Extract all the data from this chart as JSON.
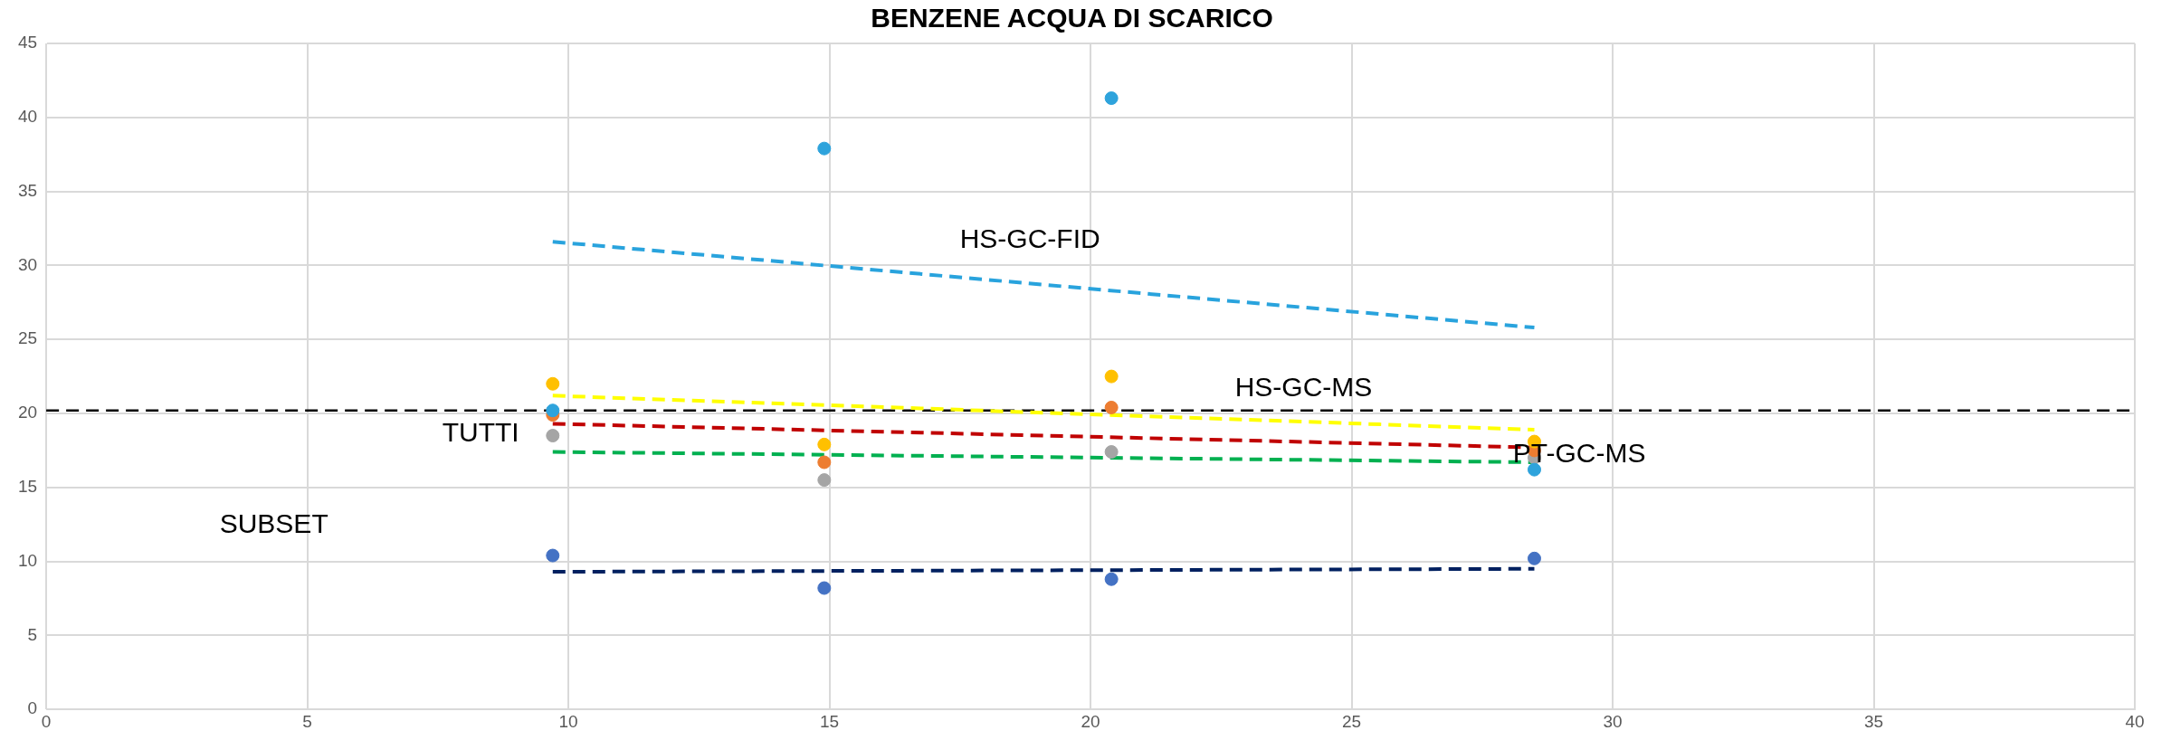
{
  "chart_data": {
    "type": "scatter",
    "title": "BENZENE ACQUA DI SCARICO",
    "xlim": [
      0,
      40
    ],
    "xticks": [
      0,
      5,
      10,
      15,
      20,
      25,
      30,
      35,
      40
    ],
    "ylim": [
      0,
      45
    ],
    "yticks": [
      0,
      5,
      10,
      15,
      20,
      25,
      30,
      35,
      40,
      45
    ],
    "grid": true,
    "legend": false,
    "marker": "circle",
    "series": [
      {
        "type": "scatter",
        "color": "#2ea3dc",
        "x": [
          9.7,
          14.9,
          20.4,
          28.5
        ],
        "values": [
          20.2,
          37.9,
          41.3,
          16.2
        ]
      },
      {
        "type": "scatter",
        "color": "#ffc000",
        "x": [
          9.7,
          14.9,
          20.4,
          28.5
        ],
        "values": [
          22,
          17.9,
          22.5,
          18.1
        ]
      },
      {
        "type": "scatter",
        "color": "#ed7d31",
        "x": [
          9.7,
          14.9,
          20.4,
          28.5
        ],
        "values": [
          19.9,
          16.7,
          20.4,
          17.5
        ]
      },
      {
        "type": "scatter",
        "color": "#a5a5a5",
        "x": [
          9.7,
          14.9,
          20.4,
          28.5
        ],
        "values": [
          18.5,
          15.5,
          17.4,
          17.0
        ]
      },
      {
        "type": "scatter",
        "color": "#4472c4",
        "x": [
          9.7,
          14.9,
          20.4,
          28.5
        ],
        "values": [
          10.4,
          8.2,
          8.8,
          10.2
        ]
      },
      {
        "type": "line",
        "color": "#29a3dd",
        "line_style": "dashed",
        "marker": "none",
        "x": [
          9.7,
          28.5
        ],
        "values": [
          31.6,
          25.8
        ]
      },
      {
        "type": "line",
        "color": "#ffff00",
        "line_style": "dashed",
        "marker": "none",
        "x": [
          9.7,
          28.5
        ],
        "values": [
          21.2,
          18.9
        ]
      },
      {
        "type": "line",
        "color": "#c00000",
        "line_style": "dashed",
        "marker": "none",
        "x": [
          9.7,
          28.5
        ],
        "values": [
          19.3,
          17.7
        ]
      },
      {
        "type": "line",
        "color": "#00b050",
        "line_style": "dashed",
        "marker": "none",
        "x": [
          9.7,
          28.5
        ],
        "values": [
          17.4,
          16.7
        ]
      },
      {
        "type": "line",
        "color": "#002060",
        "line_style": "dashed",
        "marker": "none",
        "x": [
          9.7,
          28.5
        ],
        "values": [
          9.3,
          9.5
        ]
      }
    ],
    "ref_lines": [
      {
        "axis": "y",
        "value": 20.2,
        "color": "#000000",
        "line_style": "dashed"
      }
    ],
    "annotations": [
      "HS-GC-FID",
      "HS-GC-MS",
      "PT-GC-MS",
      "TUTTI",
      "SUBSET"
    ]
  }
}
